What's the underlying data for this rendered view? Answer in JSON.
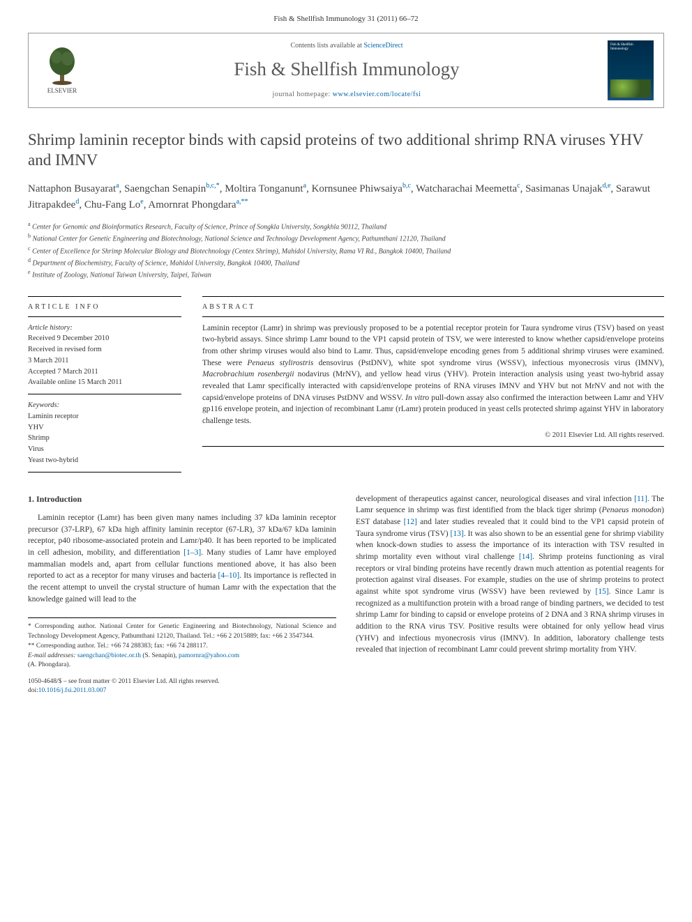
{
  "journal_ref": "Fish & Shellfish Immunology 31 (2011) 66–72",
  "header": {
    "elsevier_label": "ELSEVIER",
    "contents_prefix": "Contents lists available at ",
    "contents_link": "ScienceDirect",
    "journal_name": "Fish & Shellfish Immunology",
    "homepage_prefix": "journal homepage: ",
    "homepage_url": "www.elsevier.com/locate/fsi",
    "cover_title": "Fish & Shellfish Immunology"
  },
  "title": "Shrimp laminin receptor binds with capsid proteins of two additional shrimp RNA viruses YHV and IMNV",
  "authors_html": "Nattaphon Busayarat<span class='sup'>a</span>, Saengchan Senapin<span class='sup'>b,c,*</span>, Moltira Tonganunt<span class='sup'>a</span>, Kornsunee Phiwsaiya<span class='sup'>b,c</span>, Watcharachai Meemetta<span class='sup'>c</span>, Sasimanas Unajak<span class='sup'>d,e</span>, Sarawut Jitrapakdee<span class='sup'>d</span>, Chu-Fang Lo<span class='sup'>e</span>, Amornrat Phongdara<span class='sup'>a,**</span>",
  "affiliations": [
    {
      "sup": "a",
      "text": "Center for Genomic and Bioinformatics Research, Faculty of Science, Prince of Songkla University, Songkhla 90112, Thailand"
    },
    {
      "sup": "b",
      "text": "National Center for Genetic Engineering and Biotechnology, National Science and Technology Development Agency, Pathumthani 12120, Thailand"
    },
    {
      "sup": "c",
      "text": "Center of Excellence for Shrimp Molecular Biology and Biotechnology (Centex Shrimp), Mahidol University, Rama VI Rd., Bangkok 10400, Thailand"
    },
    {
      "sup": "d",
      "text": "Department of Biochemistry, Faculty of Science, Mahidol University, Bangkok 10400, Thailand"
    },
    {
      "sup": "e",
      "text": "Institute of Zoology, National Taiwan University, Taipei, Taiwan"
    }
  ],
  "info": {
    "label": "ARTICLE INFO",
    "history_heading": "Article history:",
    "history": [
      "Received 9 December 2010",
      "Received in revised form",
      "3 March 2011",
      "Accepted 7 March 2011",
      "Available online 15 March 2011"
    ],
    "keywords_heading": "Keywords:",
    "keywords": [
      "Laminin receptor",
      "YHV",
      "Shrimp",
      "Virus",
      "Yeast two-hybrid"
    ]
  },
  "abstract": {
    "label": "ABSTRACT",
    "text_html": "Laminin receptor (Lamr) in shrimp was previously proposed to be a potential receptor protein for Taura syndrome virus (TSV) based on yeast two-hybrid assays. Since shrimp Lamr bound to the VP1 capsid protein of TSV, we were interested to know whether capsid/envelope proteins from other shrimp viruses would also bind to Lamr. Thus, capsid/envelope encoding genes from 5 additional shrimp viruses were examined. These were <em>Penaeus stylirostris</em> densovirus (PstDNV), white spot syndrome virus (WSSV), infectious myonecrosis virus (IMNV), <em>Macrobrachium rosenbergii</em> nodavirus (MrNV), and yellow head virus (YHV). Protein interaction analysis using yeast two-hybrid assay revealed that Lamr specifically interacted with capsid/envelope proteins of RNA viruses IMNV and YHV but not MrNV and not with the capsid/envelope proteins of DNA viruses PstDNV and WSSV. <em>In vitro</em> pull-down assay also confirmed the interaction between Lamr and YHV gp116 envelope protein, and injection of recombinant Lamr (rLamr) protein produced in yeast cells protected shrimp against YHV in laboratory challenge tests.",
    "copyright": "© 2011 Elsevier Ltd. All rights reserved."
  },
  "body": {
    "heading": "1. Introduction",
    "col1_html": "Laminin receptor (Lamr) has been given many names including 37 kDa laminin receptor precursor (37-LRP), 67 kDa high affinity laminin receptor (67-LR), 37 kDa/67 kDa laminin receptor, p40 ribosome-associated protein and Lamr/p40. It has been reported to be implicated in cell adhesion, mobility, and differentiation <a href='#'>[1–3]</a>. Many studies of Lamr have employed mammalian models and, apart from cellular functions mentioned above, it has also been reported to act as a receptor for many viruses and bacteria <a href='#'>[4–10]</a>. Its importance is reflected in the recent attempt to unveil the crystal structure of human Lamr with the expectation that the knowledge gained will lead to the",
    "col2_html": "development of therapeutics against cancer, neurological diseases and viral infection <a href='#'>[11]</a>. The Lamr sequence in shrimp was first identified from the black tiger shrimp (<em>Penaeus monodon</em>) EST database <a href='#'>[12]</a> and later studies revealed that it could bind to the VP1 capsid protein of Taura syndrome virus (TSV) <a href='#'>[13]</a>. It was also shown to be an essential gene for shrimp viability when knock-down studies to assess the importance of its interaction with TSV resulted in shrimp mortality even without viral challenge <a href='#'>[14]</a>. Shrimp proteins functioning as viral receptors or viral binding proteins have recently drawn much attention as potential reagents for protection against viral diseases. For example, studies on the use of shrimp proteins to protect against white spot syndrome virus (WSSV) have been reviewed by <a href='#'>[15]</a>. Since Lamr is recognized as a multifunction protein with a broad range of binding partners, we decided to test shrimp Lamr for binding to capsid or envelope proteins of 2 DNA and 3 RNA shrimp viruses in addition to the RNA virus TSV. Positive results were obtained for only yellow head virus (YHV) and infectious myonecrosis virus (IMNV). In addition, laboratory challenge tests revealed that injection of recombinant Lamr could prevent shrimp mortality from YHV."
  },
  "footnotes": {
    "corr1": "* Corresponding author. National Center for Genetic Engineering and Biotechnology, National Science and Technology Development Agency, Pathumthani 12120, Thailand. Tel.: +66 2 2015889; fax: +66 2 3547344.",
    "corr2": "** Corresponding author. Tel.: +66 74 288383; fax: +66 74 288117.",
    "emails_prefix": "E-mail addresses: ",
    "email1": "saengchan@biotec.or.th",
    "email1_who": " (S. Senapin), ",
    "email2": "pamornra@yahoo.com",
    "email2_who": " (A. Phongdara)."
  },
  "bottom": {
    "issn_line": "1050-4648/$ – see front matter © 2011 Elsevier Ltd. All rights reserved.",
    "doi_prefix": "doi:",
    "doi": "10.1016/j.fsi.2011.03.007"
  },
  "colors": {
    "link": "#0066aa",
    "text": "#333333",
    "heading_gray": "#454545",
    "journal_gray": "#5a5a5a",
    "border": "#000000"
  },
  "typography": {
    "body_fontsize_pt": 11.5,
    "title_fontsize_pt": 23,
    "journal_fontsize_pt": 27,
    "authors_fontsize_pt": 15,
    "affil_fontsize_pt": 10,
    "footnote_fontsize_pt": 9.5
  }
}
